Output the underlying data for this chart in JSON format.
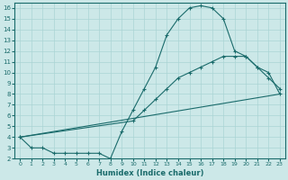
{
  "xlabel": "Humidex (Indice chaleur)",
  "bg_color": "#cce8e8",
  "grid_color": "#aad4d4",
  "line_color": "#1a6b6b",
  "xlim": [
    -0.5,
    23.5
  ],
  "ylim": [
    2,
    16.5
  ],
  "xticks": [
    0,
    1,
    2,
    3,
    4,
    5,
    6,
    7,
    8,
    9,
    10,
    11,
    12,
    13,
    14,
    15,
    16,
    17,
    18,
    19,
    20,
    21,
    22,
    23
  ],
  "yticks": [
    2,
    3,
    4,
    5,
    6,
    7,
    8,
    9,
    10,
    11,
    12,
    13,
    14,
    15,
    16
  ],
  "line1_x": [
    0,
    1,
    2,
    3,
    4,
    5,
    6,
    7,
    8,
    9,
    10,
    11,
    12,
    13,
    14,
    15,
    16,
    17,
    18,
    19,
    20,
    21,
    22,
    23
  ],
  "line1_y": [
    4,
    3,
    3,
    2.5,
    2.5,
    2.5,
    2.5,
    2.5,
    2.0,
    4.5,
    6.5,
    8.5,
    10.5,
    13.5,
    15.0,
    16.0,
    16.2,
    16.0,
    15.0,
    12.0,
    11.5,
    10.5,
    9.5,
    8.5
  ],
  "line2_x": [
    0,
    10,
    11,
    12,
    13,
    14,
    15,
    16,
    17,
    18,
    19,
    20,
    21,
    22,
    23
  ],
  "line2_y": [
    4,
    5.5,
    6.5,
    7.5,
    8.5,
    9.5,
    10.0,
    10.5,
    11.0,
    11.5,
    11.5,
    11.5,
    10.5,
    10.0,
    8.0
  ],
  "line3_x": [
    0,
    23
  ],
  "line3_y": [
    4,
    8
  ]
}
